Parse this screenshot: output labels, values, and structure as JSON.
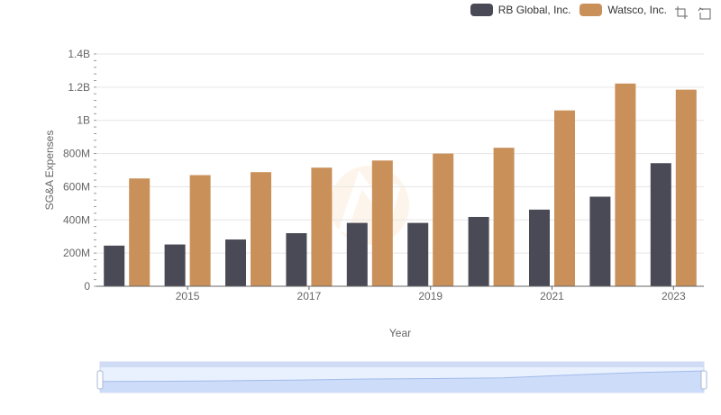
{
  "legend": {
    "items": [
      {
        "label": "RB Global, Inc.",
        "color": "#4a4a56"
      },
      {
        "label": "Watsco, Inc.",
        "color": "#c9905a"
      }
    ]
  },
  "toolbox": {
    "zoom_icon": "zoom-select-icon",
    "restore_icon": "restore-icon"
  },
  "chart_data": {
    "type": "bar",
    "categories": [
      "2014",
      "2015",
      "2016",
      "2017",
      "2018",
      "2019",
      "2020",
      "2021",
      "2022",
      "2023"
    ],
    "x_tick_labels": [
      "2015",
      "2017",
      "2019",
      "2021",
      "2023"
    ],
    "xlabel": "Year",
    "ylabel": "SG&A Expenses",
    "ylim": [
      0,
      1400000000
    ],
    "y_ticks": [
      {
        "value": 0,
        "label": "0"
      },
      {
        "value": 200000000,
        "label": "200M"
      },
      {
        "value": 400000000,
        "label": "400M"
      },
      {
        "value": 600000000,
        "label": "600M"
      },
      {
        "value": 800000000,
        "label": "800M"
      },
      {
        "value": 1000000000,
        "label": "1B"
      },
      {
        "value": 1200000000,
        "label": "1.2B"
      },
      {
        "value": 1400000000,
        "label": "1.4B"
      }
    ],
    "grid": true,
    "legend_position": "top-right",
    "series": [
      {
        "name": "RB Global, Inc.",
        "color": "#4a4a56",
        "values": [
          245000000,
          252000000,
          282000000,
          320000000,
          382000000,
          382000000,
          418000000,
          462000000,
          540000000,
          742000000
        ]
      },
      {
        "name": "Watsco, Inc.",
        "color": "#c9905a",
        "values": [
          650000000,
          670000000,
          688000000,
          715000000,
          758000000,
          800000000,
          835000000,
          1060000000,
          1222000000,
          1185000000
        ]
      }
    ],
    "data_zoom": {
      "start": 0,
      "end": 100
    }
  }
}
